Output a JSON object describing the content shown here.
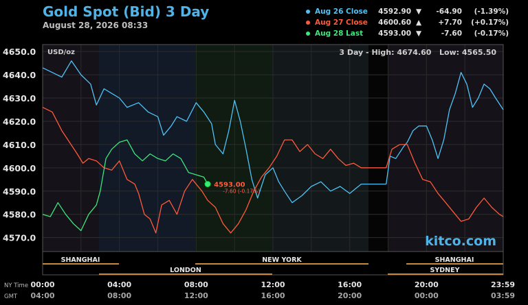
{
  "title": "Gold Spot (Bid) 3 Day",
  "subtitle": "August 28, 2026 08:33",
  "legend": [
    {
      "name": "Aug 26 Close",
      "value": "4592.90",
      "arrow": "▼",
      "change": "-64.90",
      "percent": "(-1.39%)",
      "color": "#4fc3f7"
    },
    {
      "name": "Aug 27 Close",
      "value": "4600.60",
      "arrow": "▲",
      "change": "+7.70",
      "percent": "(+0.17%)",
      "color": "#ff5a3c"
    },
    {
      "name": "Aug 28 Last",
      "value": "4593.00",
      "arrow": "▼",
      "change": "-7.60",
      "percent": "(-0.17%)",
      "color": "#3ce87a"
    }
  ],
  "unit_label": "USD/oz",
  "range_label": "3 Day - High: 4674.60   Low: 4565.50",
  "watermark": "kitco.com",
  "last_marker": {
    "price_label": "4593.00",
    "change_label": "-7.60 (-0.17%)"
  },
  "sessions": {
    "row1": [
      "SHANGHAI",
      "NEW YORK",
      "SHANGHAI"
    ],
    "row2": [
      "LONDON",
      "SYDNEY"
    ]
  },
  "time_axis": {
    "row1_label": "NY Time",
    "row2_label": "GMT",
    "ny": [
      "00:00",
      "04:00",
      "08:00",
      "12:00",
      "16:00",
      "20:00",
      "23:59"
    ],
    "gmt": [
      "04:00",
      "08:00",
      "12:00",
      "16:00",
      "20:00",
      "00:00",
      "03:59"
    ]
  },
  "colors": {
    "aug26": "#4fc3f7",
    "aug27": "#ff5a3c",
    "aug28": "#3ce87a",
    "title": "#4fb3e8",
    "session": "#c8893a"
  },
  "chart_data": {
    "type": "line",
    "x_unit": "hours since 00:00 NY time",
    "xlim": [
      0,
      24
    ],
    "ylim": [
      4564,
      4653
    ],
    "y_ticks": [
      "4650.0",
      "4640.0",
      "4630.0",
      "4620.0",
      "4610.0",
      "4600.0",
      "4590.0",
      "4580.0",
      "4570.0"
    ],
    "y_tick_values": [
      4650,
      4640,
      4630,
      4620,
      4610,
      4600,
      4590,
      4580,
      4570
    ],
    "series": [
      {
        "name": "Aug 26 Close",
        "color": "#4fc3f7",
        "points": [
          [
            0,
            4643
          ],
          [
            0.5,
            4641
          ],
          [
            1,
            4639
          ],
          [
            1.5,
            4646
          ],
          [
            2,
            4640
          ],
          [
            2.5,
            4636
          ],
          [
            2.8,
            4627
          ],
          [
            3.2,
            4634
          ],
          [
            3.6,
            4632
          ],
          [
            4,
            4630
          ],
          [
            4.4,
            4626
          ],
          [
            5,
            4628
          ],
          [
            5.5,
            4624
          ],
          [
            6,
            4622
          ],
          [
            6.3,
            4614
          ],
          [
            6.7,
            4618
          ],
          [
            7,
            4622
          ],
          [
            7.5,
            4620
          ],
          [
            8,
            4628
          ],
          [
            8.4,
            4624
          ],
          [
            8.8,
            4619
          ],
          [
            9,
            4610
          ],
          [
            9.4,
            4606
          ],
          [
            9.7,
            4616
          ],
          [
            10,
            4629
          ],
          [
            10.3,
            4620
          ],
          [
            10.6,
            4608
          ],
          [
            10.9,
            4595
          ],
          [
            11.2,
            4587
          ],
          [
            11.6,
            4597
          ],
          [
            12,
            4600
          ],
          [
            12.3,
            4594
          ],
          [
            12.6,
            4590
          ],
          [
            13,
            4585
          ],
          [
            13.5,
            4588
          ],
          [
            14,
            4592
          ],
          [
            14.5,
            4594
          ],
          [
            15,
            4590
          ],
          [
            15.5,
            4592
          ],
          [
            16,
            4589
          ],
          [
            16.3,
            4591
          ],
          [
            16.6,
            4593
          ],
          [
            17,
            4593
          ],
          [
            17.9,
            4593
          ],
          [
            18.1,
            4605
          ],
          [
            18.4,
            4604
          ],
          [
            18.8,
            4609
          ],
          [
            19,
            4611
          ],
          [
            19.3,
            4616
          ],
          [
            19.6,
            4618
          ],
          [
            20,
            4618
          ],
          [
            20.3,
            4612
          ],
          [
            20.6,
            4604
          ],
          [
            20.9,
            4612
          ],
          [
            21.2,
            4625
          ],
          [
            21.5,
            4632
          ],
          [
            21.8,
            4641
          ],
          [
            22.1,
            4636
          ],
          [
            22.4,
            4626
          ],
          [
            22.7,
            4630
          ],
          [
            23,
            4636
          ],
          [
            23.3,
            4634
          ],
          [
            23.6,
            4630
          ],
          [
            24,
            4625
          ]
        ]
      },
      {
        "name": "Aug 27 Close",
        "color": "#ff5a3c",
        "points": [
          [
            0,
            4626
          ],
          [
            0.5,
            4624
          ],
          [
            1,
            4616
          ],
          [
            1.4,
            4611
          ],
          [
            1.8,
            4606
          ],
          [
            2.1,
            4602
          ],
          [
            2.4,
            4604
          ],
          [
            2.8,
            4603
          ],
          [
            3.2,
            4600
          ],
          [
            3.6,
            4599
          ],
          [
            4,
            4603
          ],
          [
            4.4,
            4595
          ],
          [
            4.8,
            4593
          ],
          [
            5,
            4589
          ],
          [
            5.3,
            4580
          ],
          [
            5.6,
            4578
          ],
          [
            5.9,
            4572
          ],
          [
            6.2,
            4584
          ],
          [
            6.6,
            4586
          ],
          [
            7,
            4580
          ],
          [
            7.4,
            4590
          ],
          [
            7.8,
            4595
          ],
          [
            8.3,
            4590
          ],
          [
            8.6,
            4586
          ],
          [
            9,
            4583
          ],
          [
            9.4,
            4576
          ],
          [
            9.8,
            4572
          ],
          [
            10.2,
            4576
          ],
          [
            10.6,
            4582
          ],
          [
            11,
            4590
          ],
          [
            11.4,
            4596
          ],
          [
            11.8,
            4600
          ],
          [
            12.2,
            4605
          ],
          [
            12.6,
            4612
          ],
          [
            13,
            4612
          ],
          [
            13.4,
            4607
          ],
          [
            13.8,
            4610
          ],
          [
            14.2,
            4606
          ],
          [
            14.6,
            4604
          ],
          [
            15,
            4608
          ],
          [
            15.4,
            4604
          ],
          [
            15.8,
            4601
          ],
          [
            16.2,
            4602
          ],
          [
            16.6,
            4600
          ],
          [
            17,
            4600
          ],
          [
            17.9,
            4600
          ],
          [
            18.2,
            4608
          ],
          [
            18.6,
            4610
          ],
          [
            19,
            4610
          ],
          [
            19.4,
            4602
          ],
          [
            19.8,
            4595
          ],
          [
            20.2,
            4594
          ],
          [
            20.6,
            4589
          ],
          [
            21,
            4585
          ],
          [
            21.4,
            4581
          ],
          [
            21.8,
            4577
          ],
          [
            22.2,
            4578
          ],
          [
            22.6,
            4583
          ],
          [
            23,
            4587
          ],
          [
            23.4,
            4583
          ],
          [
            23.8,
            4580
          ],
          [
            24,
            4579
          ]
        ]
      },
      {
        "name": "Aug 28 Last",
        "color": "#3ce87a",
        "points": [
          [
            0,
            4580
          ],
          [
            0.4,
            4579
          ],
          [
            0.8,
            4585
          ],
          [
            1.2,
            4580
          ],
          [
            1.6,
            4576
          ],
          [
            2,
            4573
          ],
          [
            2.4,
            4580
          ],
          [
            2.8,
            4584
          ],
          [
            3,
            4590
          ],
          [
            3.3,
            4604
          ],
          [
            3.6,
            4608
          ],
          [
            4,
            4611
          ],
          [
            4.4,
            4612
          ],
          [
            4.8,
            4606
          ],
          [
            5.2,
            4603
          ],
          [
            5.6,
            4606
          ],
          [
            6,
            4604
          ],
          [
            6.4,
            4603
          ],
          [
            6.8,
            4606
          ],
          [
            7.2,
            4604
          ],
          [
            7.6,
            4598
          ],
          [
            8,
            4597
          ],
          [
            8.4,
            4596
          ],
          [
            8.6,
            4593
          ]
        ]
      }
    ]
  }
}
